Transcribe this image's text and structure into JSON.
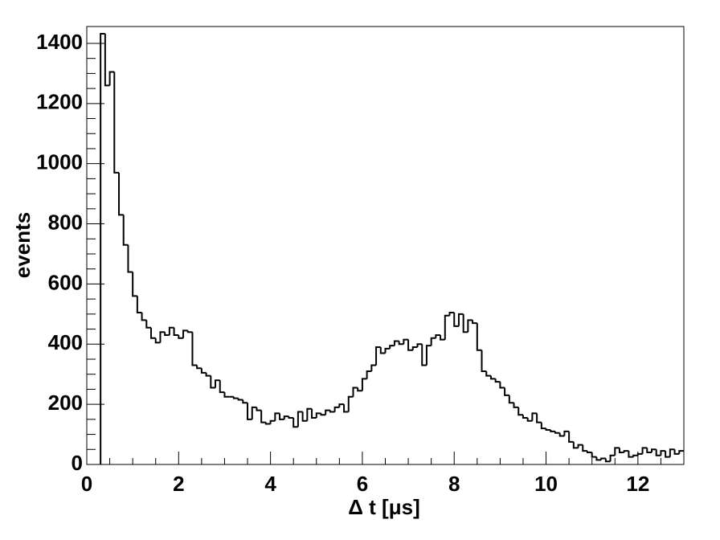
{
  "chart_data": {
    "type": "histogram",
    "xlabel": "Δ t [μs]",
    "ylabel": "events",
    "bins": [
      0.3,
      0.4,
      0.5,
      0.6,
      0.7,
      0.8,
      0.9,
      1.0,
      1.1,
      1.2,
      1.3,
      1.4,
      1.5,
      1.6,
      1.7,
      1.8,
      1.9,
      2.0,
      2.1,
      2.2,
      2.3,
      2.4,
      2.5,
      2.6,
      2.7,
      2.8,
      2.9,
      3.0,
      3.1,
      3.2,
      3.3,
      3.4,
      3.5,
      3.6,
      3.7,
      3.8,
      3.9,
      4.0,
      4.1,
      4.2,
      4.3,
      4.4,
      4.5,
      4.6,
      4.7,
      4.8,
      4.9,
      5.0,
      5.1,
      5.2,
      5.3,
      5.4,
      5.5,
      5.6,
      5.7,
      5.8,
      5.9,
      6.0,
      6.1,
      6.2,
      6.3,
      6.4,
      6.5,
      6.6,
      6.7,
      6.8,
      6.9,
      7.0,
      7.1,
      7.2,
      7.3,
      7.4,
      7.5,
      7.6,
      7.7,
      7.8,
      7.9,
      8.0,
      8.1,
      8.2,
      8.3,
      8.4,
      8.5,
      8.6,
      8.7,
      8.8,
      8.9,
      9.0,
      9.1,
      9.2,
      9.3,
      9.4,
      9.5,
      9.6,
      9.7,
      9.8,
      9.9,
      10.0,
      10.1,
      10.2,
      10.3,
      10.4,
      10.5,
      10.6,
      10.7,
      10.8,
      10.9,
      11.0,
      11.1,
      11.2,
      11.3,
      11.4,
      11.5,
      11.6,
      11.7,
      11.8,
      11.9,
      12.0,
      12.1,
      12.2,
      12.3,
      12.4,
      12.5,
      12.6,
      12.7,
      12.8,
      12.9,
      13.0
    ],
    "values": [
      1432,
      1260,
      1305,
      970,
      830,
      730,
      640,
      560,
      505,
      480,
      455,
      420,
      405,
      440,
      430,
      455,
      430,
      420,
      445,
      440,
      330,
      320,
      305,
      295,
      255,
      280,
      240,
      225,
      225,
      220,
      215,
      205,
      150,
      190,
      180,
      140,
      135,
      145,
      170,
      150,
      160,
      155,
      125,
      175,
      145,
      185,
      155,
      170,
      165,
      180,
      175,
      190,
      200,
      175,
      225,
      255,
      245,
      285,
      310,
      330,
      390,
      370,
      385,
      395,
      410,
      400,
      415,
      380,
      390,
      400,
      330,
      395,
      420,
      430,
      415,
      495,
      505,
      460,
      500,
      440,
      480,
      470,
      380,
      310,
      295,
      285,
      275,
      255,
      230,
      205,
      190,
      165,
      155,
      145,
      170,
      140,
      120,
      115,
      110,
      105,
      95,
      110,
      75,
      55,
      65,
      45,
      40,
      25,
      15,
      20,
      10,
      30,
      55,
      40,
      45,
      25,
      30,
      35,
      55,
      40,
      50,
      30,
      45,
      25,
      50,
      35,
      45
    ],
    "color": "#000000",
    "xlim": [
      0,
      13
    ],
    "ylim": [
      0,
      1456
    ],
    "xticks": [
      0,
      2,
      4,
      6,
      8,
      10,
      12
    ],
    "yticks": [
      0,
      200,
      400,
      600,
      800,
      1000,
      1200,
      1400
    ]
  }
}
